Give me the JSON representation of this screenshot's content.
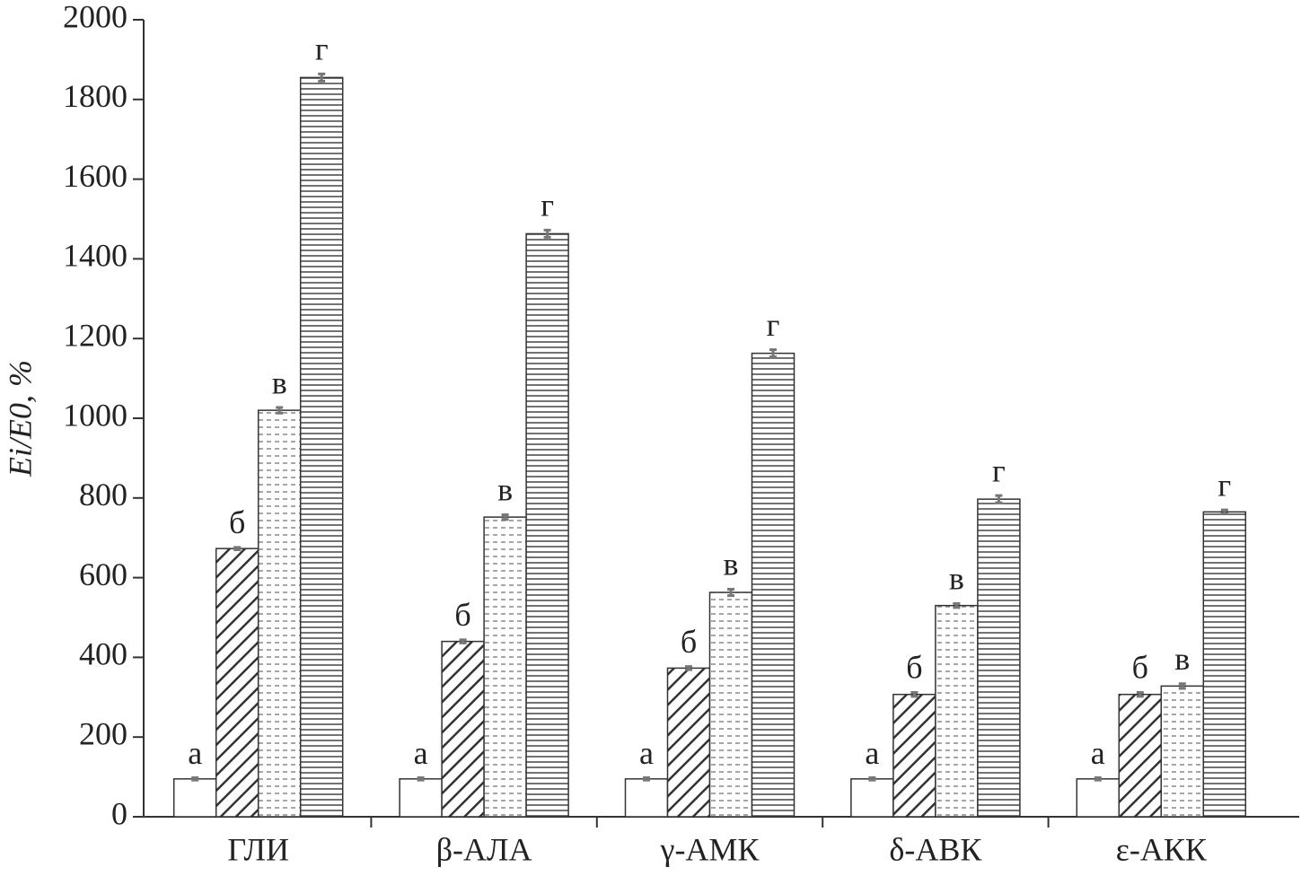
{
  "chart_data": {
    "type": "bar",
    "ylabel": "Ei/E0, %",
    "categories": [
      "ГЛИ",
      "β-АЛА",
      "γ-АМК",
      "δ-АВК",
      "ε-АКК"
    ],
    "series": [
      {
        "color": "#ffffff",
        "hatch": "none",
        "labels": [
          "а",
          "а",
          "а",
          "а",
          "а"
        ],
        "values": [
          95,
          95,
          95,
          95,
          95
        ],
        "errors": [
          3,
          3,
          3,
          3,
          3
        ]
      },
      {
        "color": "#ffffff",
        "hatch": "diagonal",
        "labels": [
          "б",
          "б",
          "б",
          "б",
          "б"
        ],
        "values": [
          673,
          440,
          373,
          307,
          307
        ],
        "errors": [
          3,
          4,
          4,
          5,
          5
        ]
      },
      {
        "color": "#ffffff",
        "hatch": "dots",
        "labels": [
          "в",
          "в",
          "в",
          "в",
          "в"
        ],
        "values": [
          1020,
          752,
          563,
          530,
          328
        ],
        "errors": [
          7,
          6,
          8,
          5,
          6
        ]
      },
      {
        "color": "#ffffff",
        "hatch": "horizontal",
        "labels": [
          "г",
          "г",
          "г",
          "г",
          "г"
        ],
        "values": [
          1855,
          1463,
          1163,
          797,
          765
        ],
        "errors": [
          9,
          9,
          9,
          9,
          5
        ]
      }
    ],
    "ylim": [
      0,
      2000
    ],
    "yticks": [
      0,
      200,
      400,
      600,
      800,
      1000,
      1200,
      1400,
      1600,
      1800,
      2000
    ]
  }
}
